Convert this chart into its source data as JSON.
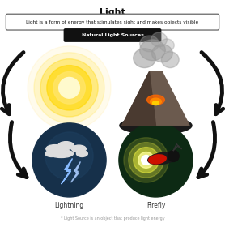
{
  "title": "Light",
  "subtitle": "Light is a form of energy that stimulates sight and makes objects visible",
  "box_label": "Natural Light Sources",
  "footnote": "* Light Source is an object that produce light energy",
  "bg_color": "#ffffff",
  "arrow_color": "#111111"
}
